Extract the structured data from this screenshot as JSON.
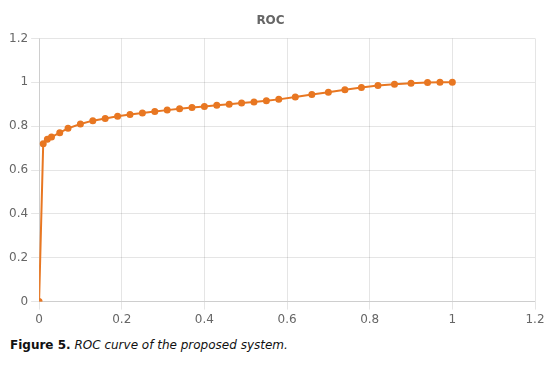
{
  "chart_data": {
    "type": "line",
    "title": "ROC",
    "x": [
      0.0,
      0.01,
      0.02,
      0.03,
      0.05,
      0.07,
      0.1,
      0.13,
      0.16,
      0.19,
      0.22,
      0.25,
      0.28,
      0.31,
      0.34,
      0.37,
      0.4,
      0.43,
      0.46,
      0.49,
      0.52,
      0.55,
      0.58,
      0.62,
      0.66,
      0.7,
      0.74,
      0.78,
      0.82,
      0.86,
      0.9,
      0.94,
      0.97,
      1.0
    ],
    "values": [
      0.0,
      0.72,
      0.74,
      0.75,
      0.77,
      0.79,
      0.81,
      0.825,
      0.835,
      0.845,
      0.853,
      0.86,
      0.867,
      0.873,
      0.879,
      0.885,
      0.89,
      0.895,
      0.9,
      0.905,
      0.91,
      0.916,
      0.922,
      0.933,
      0.944,
      0.955,
      0.966,
      0.976,
      0.985,
      0.991,
      0.996,
      0.999,
      1.0,
      1.0
    ],
    "color": "#E87722",
    "marker": "o",
    "xlim": [
      0,
      1.2
    ],
    "ylim": [
      0,
      1.2
    ],
    "xticks": [
      0,
      0.2,
      0.4,
      0.6,
      0.8,
      1.0,
      1.2
    ],
    "yticks": [
      0,
      0.2,
      0.4,
      0.6,
      0.8,
      1.0,
      1.2
    ],
    "grid": true,
    "caption": {
      "bold": "Figure 5.",
      "italic": "ROC curve of the proposed system."
    }
  }
}
